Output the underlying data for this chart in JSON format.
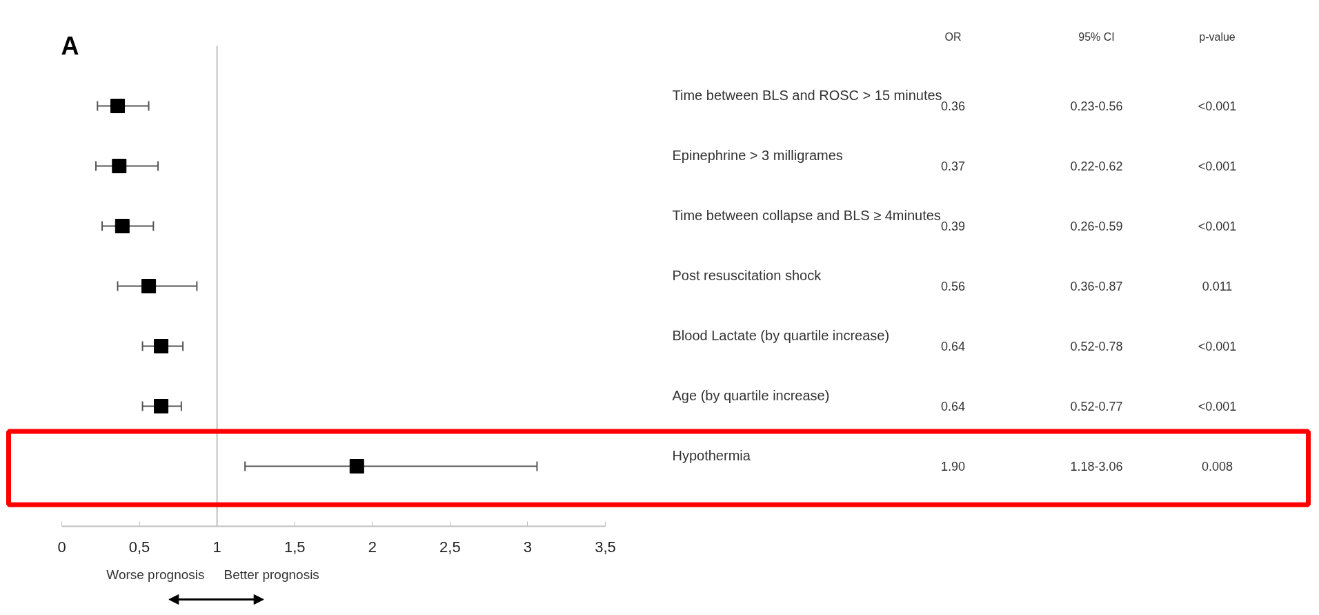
{
  "chart_data": {
    "type": "scatter",
    "orientation": "horizontal",
    "categories": [
      "Time between BLS and ROSC > 15 minutes",
      "Epinephrine > 3 milligrames",
      "Time between collapse and BLS ≥ 4minutes",
      "Post resuscitation shock",
      "Blood Lactate (by quartile increase)",
      "Age (by quartile increase)",
      "Hypothermia"
    ],
    "values": [
      0.36,
      0.37,
      0.39,
      0.56,
      0.64,
      0.64,
      1.9
    ],
    "errors": [
      [
        0.23,
        0.56
      ],
      [
        0.22,
        0.62
      ],
      [
        0.26,
        0.59
      ],
      [
        0.36,
        0.87
      ],
      [
        0.52,
        0.78
      ],
      [
        0.52,
        0.77
      ],
      [
        1.18,
        3.06
      ]
    ],
    "value_labels": [
      "0.36",
      "0.37",
      "0.39",
      "0.56",
      "0.64",
      "0.64",
      "1.90"
    ],
    "color": "#000000",
    "marker": "square",
    "grid": false,
    "tick_labels": "x",
    "xlim": [
      0,
      3.5
    ],
    "xticks": [
      0,
      {
        "value": 0.5,
        "label": "0,5"
      },
      1,
      {
        "value": 1.5,
        "label": "1,5"
      },
      2,
      {
        "value": 2.5,
        "label": "2,5"
      },
      3,
      {
        "value": 3.5,
        "label": "3,5"
      }
    ],
    "ref_lines": [
      {
        "axis": "x",
        "value": 1,
        "color": "#bfbfbf"
      }
    ],
    "annotations": [
      "A",
      "OR",
      "95% CI",
      "p-value",
      "0.23-0.56",
      "0.22-0.62",
      "0.26-0.59",
      "0.36-0.87",
      "0.52-0.78",
      "0.52-0.77",
      "1.18-3.06",
      "<0.001",
      "<0.001",
      "<0.001",
      "0.011",
      "<0.001",
      "<0.001",
      "0.008",
      "Worse prognosis",
      "Better prognosis"
    ]
  }
}
